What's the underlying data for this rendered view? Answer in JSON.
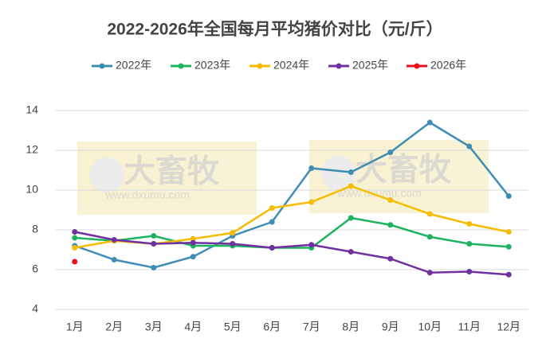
{
  "chart_data": {
    "type": "line",
    "title": "2022-2026年全国每月平均猪价对比（元/斤）",
    "categories": [
      "1月",
      "2月",
      "3月",
      "4月",
      "5月",
      "6月",
      "7月",
      "8月",
      "9月",
      "10月",
      "11月",
      "12月"
    ],
    "series": [
      {
        "name": "2022年",
        "color": "#3f8db5",
        "values": [
          7.2,
          6.5,
          6.1,
          6.65,
          7.7,
          8.4,
          11.1,
          10.9,
          11.9,
          13.4,
          12.2,
          9.7
        ]
      },
      {
        "name": "2023年",
        "color": "#1db35f",
        "values": [
          7.6,
          7.45,
          7.7,
          7.2,
          7.2,
          7.1,
          7.1,
          8.6,
          8.25,
          7.65,
          7.3,
          7.15
        ]
      },
      {
        "name": "2024年",
        "color": "#f7bc00",
        "values": [
          7.1,
          7.45,
          7.3,
          7.55,
          7.85,
          9.1,
          9.4,
          10.2,
          9.5,
          8.8,
          8.3,
          7.9
        ]
      },
      {
        "name": "2025年",
        "color": "#7030a0",
        "values": [
          7.9,
          7.5,
          7.3,
          7.35,
          7.3,
          7.1,
          7.25,
          6.9,
          6.55,
          5.85,
          5.9,
          5.75
        ]
      },
      {
        "name": "2026年",
        "color": "#e8101a",
        "values": [
          6.4,
          null,
          null,
          null,
          null,
          null,
          null,
          null,
          null,
          null,
          null,
          null
        ]
      }
    ],
    "ylim": [
      4,
      14
    ],
    "yticks": [
      4,
      6,
      8,
      10,
      12,
      14
    ],
    "grid": true,
    "legend": "top",
    "watermark": {
      "brand": "大畜牧",
      "url": "www.dxumu.com"
    }
  }
}
